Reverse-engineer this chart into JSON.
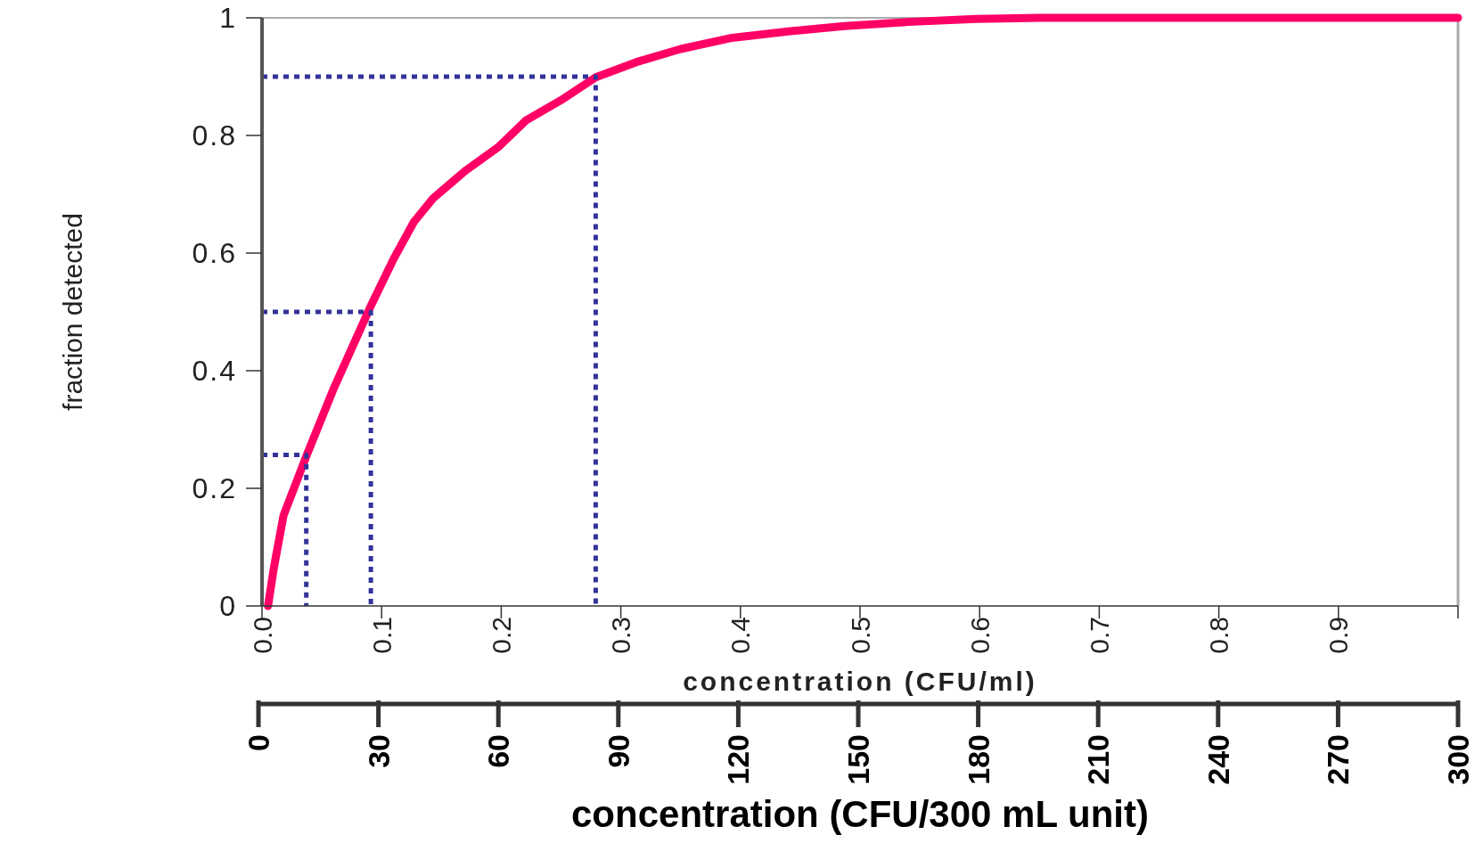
{
  "chart_data": {
    "type": "line",
    "xlabel": "concentration (CFU/ml)",
    "ylabel": "fraction detected",
    "x2label": "concentration (CFU/300 mL unit)",
    "xlim": [
      0,
      1
    ],
    "xticks": [
      {
        "value": 0,
        "label": "0.0"
      },
      0.1,
      0.2,
      0.3,
      0.4,
      0.5,
      0.6,
      0.7,
      0.8,
      0.9,
      {
        "value": 1,
        "label": null
      }
    ],
    "ylim": [
      0,
      1
    ],
    "yticks": [
      0,
      0.2,
      0.4,
      0.6,
      0.8,
      1
    ],
    "x2lim": [
      0,
      300
    ],
    "x2ticks": [
      0,
      30,
      60,
      90,
      120,
      150,
      180,
      210,
      240,
      270,
      300
    ],
    "grid": false,
    "marker": "none",
    "series": [
      {
        "color": "#ff0066",
        "line_style": "solid",
        "x": [
          0.005,
          0.01,
          0.018,
          0.0375,
          0.06,
          0.09,
          0.11,
          0.127,
          0.143,
          0.17,
          0.198,
          0.221,
          0.25,
          0.279,
          0.315,
          0.35,
          0.393,
          0.44,
          0.487,
          0.54,
          0.597,
          0.65,
          0.72,
          0.85,
          1
        ],
        "values": [
          0,
          0.066,
          0.154,
          0.257,
          0.37,
          0.506,
          0.59,
          0.653,
          0.693,
          0.74,
          0.781,
          0.826,
          0.86,
          0.899,
          0.926,
          0.947,
          0.966,
          0.977,
          0.986,
          0.993,
          0.998,
          1,
          1,
          1,
          1
        ]
      },
      {
        "color": "#333399",
        "line_style": "dotted",
        "x": [
          0,
          0.037,
          0.037
        ],
        "values": [
          0.257,
          0.257,
          0
        ]
      },
      {
        "color": "#333399",
        "line_style": "dotted",
        "x": [
          0,
          0.091,
          0.091
        ],
        "values": [
          0.5,
          0.5,
          0
        ]
      },
      {
        "color": "#333399",
        "line_style": "dotted",
        "x": [
          0,
          0.279,
          0.279
        ],
        "values": [
          0.9,
          0.9,
          0
        ]
      }
    ]
  }
}
